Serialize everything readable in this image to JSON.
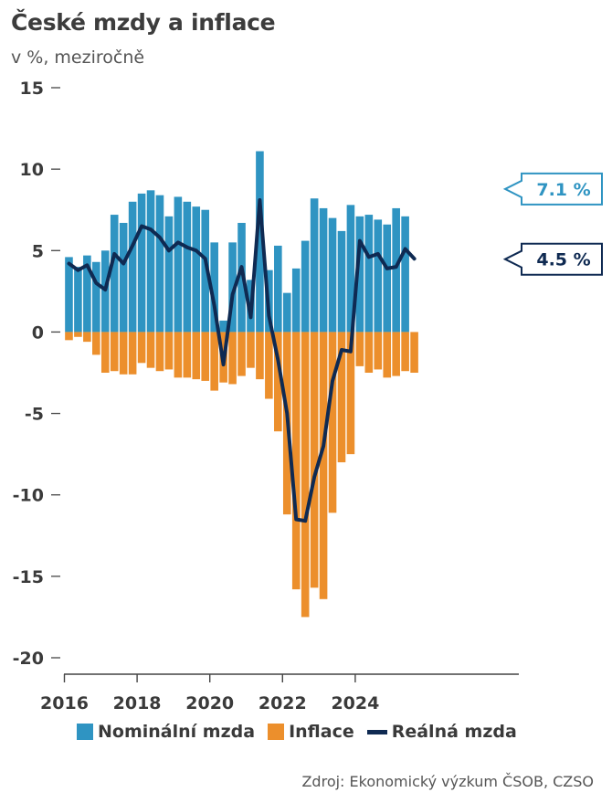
{
  "title": "České mzdy a inflace",
  "subtitle": "v %, meziročně",
  "source": "Zdroj: Ekonomický výzkum ČSOB, CZSO",
  "colors": {
    "nominal": "#2f94c2",
    "inflation": "#ec8f2c",
    "real": "#0f2a52",
    "nominal_callout_border": "#2f94c2",
    "real_callout_border": "#0f2a52"
  },
  "legend": [
    {
      "key": "nominal",
      "label": "Nominální mzda"
    },
    {
      "key": "inflation",
      "label": "Inflace"
    },
    {
      "key": "real",
      "label": "Reálná mzda"
    }
  ],
  "callouts": {
    "nominal": "7.1 %",
    "real": "4.5 %"
  },
  "chart_data": {
    "type": "bar",
    "title": "České mzdy a inflace",
    "subtitle": "v %, meziročně",
    "xlabel": "",
    "ylabel": "",
    "ylim": [
      -20,
      15
    ],
    "yticks": [
      15,
      10,
      5,
      0,
      -5,
      -10,
      -15,
      -20
    ],
    "xticks": [
      "2016",
      "2018",
      "2020",
      "2022",
      "2024"
    ],
    "grid": false,
    "legend_position": "bottom",
    "categories": [
      "2016Q1",
      "2016Q2",
      "2016Q3",
      "2016Q4",
      "2017Q1",
      "2017Q2",
      "2017Q3",
      "2017Q4",
      "2018Q1",
      "2018Q2",
      "2018Q3",
      "2018Q4",
      "2019Q1",
      "2019Q2",
      "2019Q3",
      "2019Q4",
      "2020Q1",
      "2020Q2",
      "2020Q3",
      "2020Q4",
      "2021Q1",
      "2021Q2",
      "2021Q3",
      "2021Q4",
      "2022Q1",
      "2022Q2",
      "2022Q3",
      "2022Q4",
      "2023Q1",
      "2023Q2",
      "2023Q3",
      "2023Q4",
      "2024Q1",
      "2024Q2",
      "2024Q3",
      "2024Q4",
      "2025Q1",
      "2025Q2",
      "2025Q3"
    ],
    "series": [
      {
        "name": "Nominální mzda",
        "type": "bar",
        "values": [
          4.6,
          4.0,
          4.7,
          4.3,
          5.0,
          7.2,
          6.7,
          8.0,
          8.5,
          8.7,
          8.4,
          7.1,
          8.3,
          8.0,
          7.7,
          7.5,
          5.5,
          0.7,
          5.5,
          6.7,
          3.2,
          11.1,
          3.8,
          5.3,
          2.4,
          3.9,
          5.6,
          8.2,
          7.6,
          7.0,
          6.2,
          7.8,
          7.1,
          7.2,
          6.9,
          6.6,
          7.6,
          7.1,
          null
        ]
      },
      {
        "name": "Inflace",
        "type": "bar",
        "values": [
          -0.5,
          -0.3,
          -0.6,
          -1.4,
          -2.5,
          -2.4,
          -2.6,
          -2.6,
          -1.9,
          -2.2,
          -2.4,
          -2.3,
          -2.8,
          -2.8,
          -2.9,
          -3.0,
          -3.6,
          -3.1,
          -3.2,
          -2.7,
          -2.2,
          -2.9,
          -4.1,
          -6.1,
          -11.2,
          -15.8,
          -17.5,
          -15.7,
          -16.4,
          -11.1,
          -8.0,
          -7.5,
          -2.1,
          -2.5,
          -2.3,
          -2.8,
          -2.7,
          -2.4,
          -2.5
        ]
      },
      {
        "name": "Reálná mzda",
        "type": "line",
        "values": [
          4.2,
          3.8,
          4.1,
          3.0,
          2.6,
          4.8,
          4.2,
          5.3,
          6.5,
          6.3,
          5.8,
          5.0,
          5.5,
          5.2,
          5.0,
          4.5,
          1.6,
          -2.0,
          2.3,
          4.0,
          0.9,
          8.1,
          1.0,
          -1.7,
          -5.0,
          -11.5,
          -11.6,
          -8.9,
          -7.0,
          -3.0,
          -1.1,
          -1.2,
          5.6,
          4.6,
          4.8,
          3.9,
          4.0,
          5.1,
          4.5
        ]
      }
    ]
  }
}
